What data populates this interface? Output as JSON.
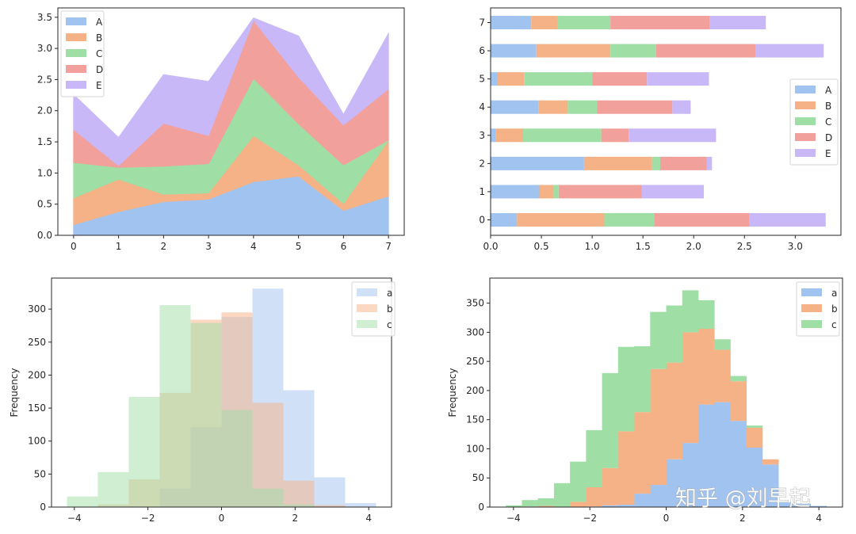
{
  "figure": {
    "watermark": "知乎 @刘早起",
    "palette": {
      "A": "#a1c3f0",
      "B": "#f5b286",
      "C": "#9fdea5",
      "D": "#f2a09b",
      "E": "#c8b8f8"
    }
  },
  "chart_data": [
    {
      "id": "stacked-area",
      "type": "area",
      "stacked": true,
      "title": "",
      "xlabel": "",
      "ylabel": "",
      "x": [
        0,
        1,
        2,
        3,
        4,
        5,
        6,
        7
      ],
      "xlim": [
        -0.35,
        7.35
      ],
      "ylim": [
        0,
        3.65
      ],
      "xticks": [
        "0",
        "1",
        "2",
        "3",
        "4",
        "5",
        "6",
        "7"
      ],
      "yticks": [
        "0.0",
        "0.5",
        "1.0",
        "1.5",
        "2.0",
        "2.5",
        "3.0",
        "3.5"
      ],
      "ytick_values": [
        0,
        0.5,
        1.0,
        1.5,
        2.0,
        2.5,
        3.0,
        3.5
      ],
      "legend": "top-left",
      "grid": false,
      "series": [
        {
          "name": "A",
          "values": [
            0.17,
            0.38,
            0.54,
            0.58,
            0.86,
            0.95,
            0.4,
            0.63
          ]
        },
        {
          "name": "B",
          "values": [
            0.43,
            0.52,
            0.12,
            0.1,
            0.74,
            0.18,
            0.11,
            0.89
          ]
        },
        {
          "name": "C",
          "values": [
            0.57,
            0.19,
            0.45,
            0.47,
            0.92,
            0.66,
            0.62,
            0.01
          ]
        },
        {
          "name": "D",
          "values": [
            0.53,
            0.03,
            0.69,
            0.45,
            0.93,
            0.75,
            0.64,
            0.82
          ]
        },
        {
          "name": "E",
          "values": [
            0.56,
            0.45,
            0.78,
            0.87,
            0.04,
            0.66,
            0.17,
            0.89
          ]
        }
      ]
    },
    {
      "id": "stacked-barh",
      "type": "bar",
      "orientation": "horizontal",
      "stacked": true,
      "title": "",
      "xlabel": "",
      "ylabel": "",
      "categories": [
        "0",
        "1",
        "2",
        "3",
        "4",
        "5",
        "6",
        "7"
      ],
      "xlim": [
        0,
        3.45
      ],
      "xticks": [
        "0.0",
        "0.5",
        "1.0",
        "1.5",
        "2.0",
        "2.5",
        "3.0"
      ],
      "xtick_values": [
        0,
        0.5,
        1.0,
        1.5,
        2.0,
        2.5,
        3.0
      ],
      "legend": "center-right",
      "grid": false,
      "series": [
        {
          "name": "A",
          "values": [
            0.26,
            0.48,
            0.92,
            0.05,
            0.47,
            0.07,
            0.45,
            0.4
          ]
        },
        {
          "name": "B",
          "values": [
            0.86,
            0.14,
            0.67,
            0.27,
            0.29,
            0.26,
            0.73,
            0.26
          ]
        },
        {
          "name": "C",
          "values": [
            0.49,
            0.05,
            0.08,
            0.77,
            0.29,
            0.67,
            0.45,
            0.52
          ]
        },
        {
          "name": "D",
          "values": [
            0.94,
            0.82,
            0.46,
            0.27,
            0.74,
            0.54,
            0.98,
            0.98
          ]
        },
        {
          "name": "E",
          "values": [
            0.75,
            0.61,
            0.05,
            0.86,
            0.18,
            0.61,
            0.67,
            0.55
          ]
        }
      ]
    },
    {
      "id": "overlay-hist",
      "type": "bar",
      "subtype": "histogram-overlay",
      "title": "",
      "xlabel": "",
      "ylabel": "Frequency",
      "bin_edges": [
        -4.2,
        -3.36,
        -2.52,
        -1.68,
        -0.84,
        0.0,
        0.84,
        1.68,
        2.52,
        3.36,
        4.2
      ],
      "xlim": [
        -4.62,
        4.62
      ],
      "ylim": [
        0,
        347
      ],
      "xticks": [
        "−4",
        "−2",
        "0",
        "2",
        "4"
      ],
      "xtick_values": [
        -4,
        -2,
        0,
        2,
        4
      ],
      "yticks": [
        "0",
        "50",
        "100",
        "150",
        "200",
        "250",
        "300"
      ],
      "ytick_values": [
        0,
        50,
        100,
        150,
        200,
        250,
        300
      ],
      "alpha": 0.5,
      "legend": "top-right",
      "grid": false,
      "series": [
        {
          "name": "a",
          "values": [
            0,
            0,
            1,
            28,
            121,
            288,
            331,
            177,
            45,
            6
          ]
        },
        {
          "name": "b",
          "values": [
            0,
            4,
            42,
            173,
            284,
            295,
            158,
            40,
            3,
            0
          ]
        },
        {
          "name": "c",
          "values": [
            16,
            53,
            167,
            306,
            279,
            147,
            28,
            4,
            0,
            0
          ]
        }
      ]
    },
    {
      "id": "stacked-hist",
      "type": "bar",
      "subtype": "histogram-stacked",
      "title": "",
      "xlabel": "",
      "ylabel": "Frequency",
      "bin_start": -4.2,
      "bin_width": 0.42,
      "xlim": [
        -4.62,
        4.62
      ],
      "ylim": [
        0,
        393
      ],
      "xticks": [
        "−4",
        "−2",
        "0",
        "2",
        "4"
      ],
      "xtick_values": [
        -4,
        -2,
        0,
        2,
        4
      ],
      "yticks": [
        "0",
        "50",
        "100",
        "150",
        "200",
        "250",
        "300",
        "350"
      ],
      "ytick_values": [
        0,
        50,
        100,
        150,
        200,
        250,
        300,
        350
      ],
      "legend": "top-right",
      "grid": false,
      "series": [
        {
          "name": "a",
          "values": [
            0,
            0,
            0,
            0,
            0,
            1,
            3,
            4,
            23,
            38,
            82,
            110,
            176,
            180,
            148,
            102,
            73,
            8,
            6,
            2
          ]
        },
        {
          "name": "b",
          "values": [
            0,
            1,
            2,
            0,
            9,
            33,
            64,
            126,
            140,
            199,
            166,
            190,
            130,
            90,
            68,
            34,
            9,
            0,
            0,
            0
          ]
        },
        {
          "name": "c",
          "values": [
            3,
            11,
            13,
            41,
            69,
            98,
            163,
            145,
            113,
            98,
            98,
            72,
            49,
            18,
            9,
            4,
            0,
            0,
            0,
            0
          ]
        }
      ]
    }
  ]
}
